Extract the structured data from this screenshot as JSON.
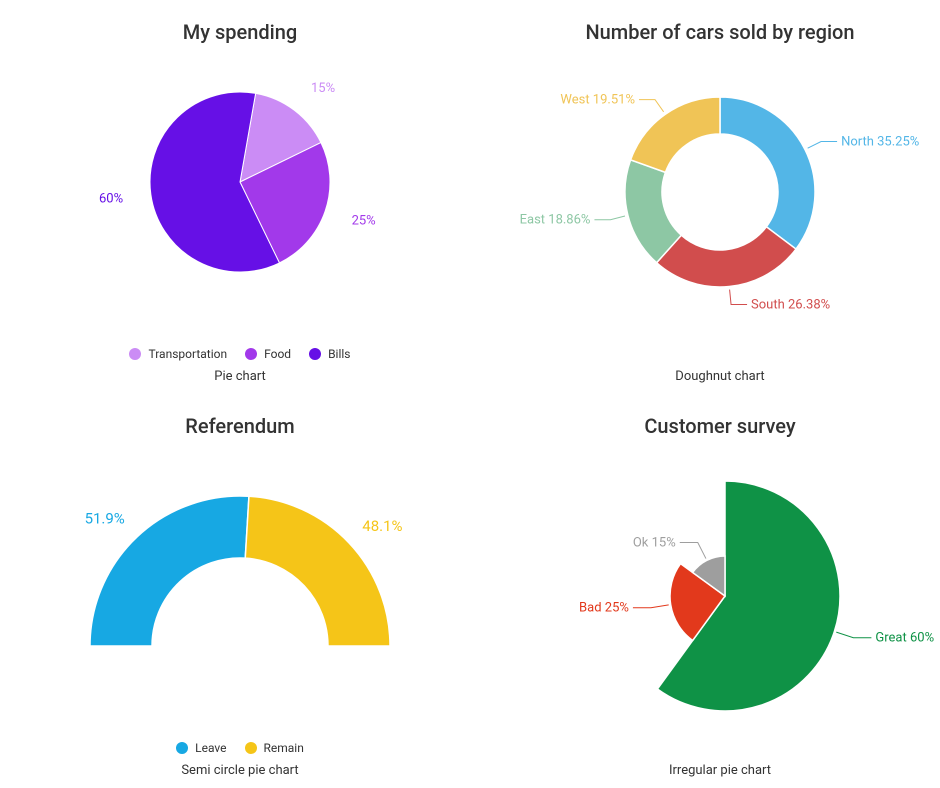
{
  "background_color": "#ffffff",
  "title_color": "#333333",
  "title_fontsize": 20,
  "subtitle_color": "#333333",
  "subtitle_fontsize": 13,
  "label_fontsize": 13,
  "legend_fontsize": 12,
  "legend_text_color": "#333333",
  "spending": {
    "type": "pie",
    "title": "My spending",
    "subtitle": "Pie chart",
    "start_angle_deg": 10,
    "radius": 90,
    "slices": [
      {
        "name": "Transportation",
        "value": 15,
        "label": "15%",
        "color": "#cb8cf5"
      },
      {
        "name": "Food",
        "value": 25,
        "label": "25%",
        "color": "#a239ea"
      },
      {
        "name": "Bills",
        "value": 60,
        "label": "60%",
        "color": "#6610e6"
      }
    ],
    "label_colors": [
      "#cb8cf5",
      "#a239ea",
      "#6610e6"
    ],
    "legend": [
      "Transportation",
      "Food",
      "Bills"
    ]
  },
  "cars": {
    "type": "doughnut",
    "title": "Number of cars sold by region",
    "subtitle": "Doughnut chart",
    "start_angle_deg": 0,
    "outer_radius": 95,
    "inner_radius": 58,
    "slices": [
      {
        "name": "North",
        "value": 35.25,
        "label": "North 35.25%",
        "color": "#53b6e7"
      },
      {
        "name": "South",
        "value": 26.38,
        "label": "South 26.38%",
        "color": "#d14d4d"
      },
      {
        "name": "East",
        "value": 18.86,
        "label": "East 18.86%",
        "color": "#8dc7a4"
      },
      {
        "name": "West",
        "value": 19.51,
        "label": "West 19.51%",
        "color": "#f0c456"
      }
    ],
    "leader_color": "#999999"
  },
  "referendum": {
    "type": "semi-doughnut",
    "title": "Referendum",
    "subtitle": "Semi circle pie chart",
    "outer_radius": 150,
    "inner_radius": 88,
    "slices": [
      {
        "name": "Leave",
        "value": 51.9,
        "label": "51.9%",
        "color": "#17a8e3"
      },
      {
        "name": "Remain",
        "value": 48.1,
        "label": "48.1%",
        "color": "#f5c518"
      }
    ],
    "legend": [
      "Leave",
      "Remain"
    ]
  },
  "survey": {
    "type": "irregular-pie",
    "title": "Customer survey",
    "subtitle": "Irregular pie chart",
    "start_angle_deg": 0,
    "max_radius": 115,
    "slices": [
      {
        "name": "Great",
        "value": 60,
        "label": "Great 60%",
        "color": "#0f9246",
        "radius": 115
      },
      {
        "name": "Bad",
        "value": 25,
        "label": "Bad 25%",
        "color": "#e2391c",
        "radius": 55
      },
      {
        "name": "Ok",
        "value": 15,
        "label": "Ok 15%",
        "color": "#9e9e9e",
        "radius": 40
      }
    ],
    "leader_color": "#666666"
  }
}
